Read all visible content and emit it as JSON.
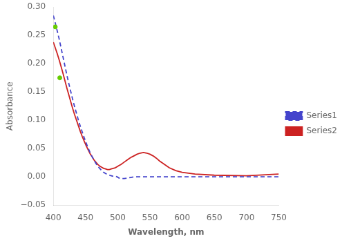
{
  "chart_data": {
    "type": "line",
    "xlabel": "Wavelength, nm",
    "ylabel": "Absorbance",
    "xlim": [
      400,
      750
    ],
    "ylim": [
      -0.05,
      0.3
    ],
    "xticks": [
      400,
      450,
      500,
      550,
      600,
      650,
      700,
      750
    ],
    "yticks": [
      {
        "value": -0.05,
        "label": "−0.05"
      },
      {
        "value": 0,
        "label": "0.00"
      },
      {
        "value": 0.05,
        "label": "0.05"
      },
      {
        "value": 0.1,
        "label": "0.10"
      },
      {
        "value": 0.15,
        "label": "0.15"
      },
      {
        "value": 0.2,
        "label": "0.20"
      },
      {
        "value": 0.25,
        "label": "0.25"
      },
      {
        "value": 0.3,
        "label": "0.30"
      }
    ],
    "grid": false,
    "legend": "right",
    "series": [
      {
        "name": "Series1",
        "type": "line",
        "color": "#4444cc",
        "line_style": "dashed",
        "x": [
          400,
          403,
          406,
          409,
          412,
          415,
          418,
          421,
          424,
          427,
          430,
          433,
          436,
          439,
          442,
          445,
          448,
          451,
          454,
          457,
          460,
          463,
          466,
          469,
          472,
          475,
          478,
          481,
          484,
          487,
          490,
          493,
          496,
          499,
          502,
          505,
          510,
          515,
          520,
          525,
          530,
          750
        ],
        "values": [
          0.285,
          0.272,
          0.258,
          0.244,
          0.228,
          0.212,
          0.196,
          0.18,
          0.165,
          0.151,
          0.137,
          0.124,
          0.112,
          0.1,
          0.089,
          0.079,
          0.069,
          0.06,
          0.051,
          0.043,
          0.036,
          0.03,
          0.024,
          0.019,
          0.015,
          0.011,
          0.008,
          0.006,
          0.004,
          0.003,
          0.002,
          0.001,
          0.001,
          0.0,
          -0.002,
          -0.003,
          -0.003,
          -0.002,
          -0.001,
          0.0,
          0.0,
          0.0
        ]
      },
      {
        "name": "Series2",
        "type": "line",
        "color": "#cc2222",
        "line_style": "solid",
        "x": [
          400,
          403,
          406,
          409,
          412,
          415,
          418,
          421,
          424,
          427,
          430,
          433,
          436,
          439,
          442,
          445,
          448,
          451,
          454,
          457,
          460,
          463,
          466,
          469,
          472,
          475,
          478,
          481,
          484,
          487,
          490,
          493,
          496,
          499,
          502,
          505,
          510,
          515,
          520,
          525,
          530,
          535,
          540,
          545,
          550,
          555,
          560,
          565,
          570,
          575,
          580,
          590,
          600,
          620,
          650,
          700,
          750
        ],
        "values": [
          0.238,
          0.228,
          0.218,
          0.207,
          0.195,
          0.183,
          0.17,
          0.157,
          0.145,
          0.133,
          0.121,
          0.11,
          0.1,
          0.09,
          0.08,
          0.071,
          0.063,
          0.055,
          0.048,
          0.041,
          0.036,
          0.03,
          0.026,
          0.022,
          0.019,
          0.017,
          0.015,
          0.014,
          0.013,
          0.013,
          0.014,
          0.015,
          0.016,
          0.018,
          0.02,
          0.022,
          0.026,
          0.03,
          0.034,
          0.037,
          0.04,
          0.042,
          0.043,
          0.042,
          0.04,
          0.037,
          0.033,
          0.028,
          0.024,
          0.02,
          0.016,
          0.011,
          0.008,
          0.005,
          0.003,
          0.002,
          0.005
        ]
      },
      {
        "type": "scatter",
        "color": "#66cc00",
        "marker": "circle",
        "x": [
          403,
          410
        ],
        "values": [
          0.265,
          0.175
        ]
      }
    ]
  }
}
